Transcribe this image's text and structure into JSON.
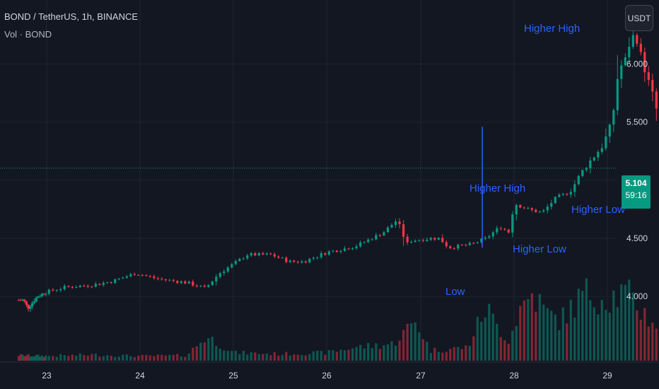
{
  "header": {
    "symbol_line": "BOND / TetherUS, 1h, BINANCE",
    "volume_label": "Vol · BOND"
  },
  "currency_button": "USDT",
  "last_price": {
    "price": "5.104",
    "countdown": "59:16"
  },
  "annotations": {
    "higher_high_top": "Higher High",
    "higher_high_mid": "Higher High",
    "higher_low_mid": "Higher Low",
    "higher_low_right": "Higher Low",
    "low": "Low"
  },
  "colors": {
    "background": "#131722",
    "up": "#089981",
    "down": "#f23645",
    "annotation": "#2962ff",
    "grid": "#1f2430"
  },
  "chart_data": {
    "type": "candlestick",
    "interval": "1h",
    "x_tick_labels": [
      "23",
      "24",
      "25",
      "26",
      "27",
      "28",
      "29"
    ],
    "y_tick_labels": [
      "4.000",
      "4.500",
      "5.000",
      "5.500",
      "6.000"
    ],
    "ylim": [
      3.6,
      6.55
    ],
    "grid": true,
    "last_price": 5.104,
    "price_anchors": [
      [
        22.5,
        3.97
      ],
      [
        22.6,
        3.9
      ],
      [
        22.8,
        4.0
      ],
      [
        23.2,
        4.08
      ],
      [
        23.5,
        4.1
      ],
      [
        23.7,
        4.13
      ],
      [
        23.95,
        4.2
      ],
      [
        24.2,
        4.15
      ],
      [
        24.5,
        4.12
      ],
      [
        24.7,
        4.07
      ],
      [
        24.85,
        4.2
      ],
      [
        25.0,
        4.28
      ],
      [
        25.15,
        4.36
      ],
      [
        25.4,
        4.36
      ],
      [
        25.6,
        4.3
      ],
      [
        25.75,
        4.3
      ],
      [
        26.0,
        4.38
      ],
      [
        26.3,
        4.43
      ],
      [
        26.6,
        4.55
      ],
      [
        26.75,
        4.66
      ],
      [
        26.85,
        4.45
      ],
      [
        26.9,
        4.48
      ],
      [
        27.1,
        4.5
      ],
      [
        27.2,
        4.5
      ],
      [
        27.3,
        4.42
      ],
      [
        27.55,
        4.45
      ],
      [
        27.7,
        4.5
      ],
      [
        27.85,
        4.6
      ],
      [
        27.95,
        4.55
      ],
      [
        28.0,
        4.8
      ],
      [
        28.15,
        4.75
      ],
      [
        28.3,
        4.72
      ],
      [
        28.45,
        4.85
      ],
      [
        28.6,
        4.9
      ],
      [
        28.75,
        5.1
      ],
      [
        28.95,
        5.3
      ],
      [
        29.05,
        5.5
      ],
      [
        29.12,
        5.95
      ],
      [
        29.2,
        6.05
      ],
      [
        29.26,
        6.25
      ],
      [
        29.32,
        6.2
      ],
      [
        29.4,
        5.95
      ],
      [
        29.5,
        5.7
      ],
      [
        29.6,
        5.35
      ],
      [
        29.7,
        5.18
      ],
      [
        29.8,
        5.104
      ]
    ],
    "volume_profile": [
      [
        22.4,
        0.08
      ],
      [
        23.0,
        0.07
      ],
      [
        23.5,
        0.09
      ],
      [
        24.0,
        0.07
      ],
      [
        24.5,
        0.08
      ],
      [
        24.7,
        0.35
      ],
      [
        24.8,
        0.3
      ],
      [
        25.0,
        0.12
      ],
      [
        25.5,
        0.1
      ],
      [
        26.0,
        0.12
      ],
      [
        26.3,
        0.2
      ],
      [
        26.7,
        0.25
      ],
      [
        26.95,
        0.6
      ],
      [
        27.1,
        0.15
      ],
      [
        27.5,
        0.2
      ],
      [
        27.7,
        0.8
      ],
      [
        27.8,
        0.55
      ],
      [
        27.95,
        0.3
      ],
      [
        28.05,
        0.75
      ],
      [
        28.2,
        1.0
      ],
      [
        28.35,
        0.7
      ],
      [
        28.5,
        0.6
      ],
      [
        28.75,
        1.0
      ],
      [
        29.0,
        0.95
      ],
      [
        29.2,
        1.0
      ],
      [
        29.4,
        0.7
      ],
      [
        29.6,
        0.45
      ],
      [
        29.8,
        0.25
      ]
    ],
    "x_range": [
      22.4,
      29.9
    ],
    "volume_pane": {
      "max_height_ratio": 0.24
    }
  }
}
